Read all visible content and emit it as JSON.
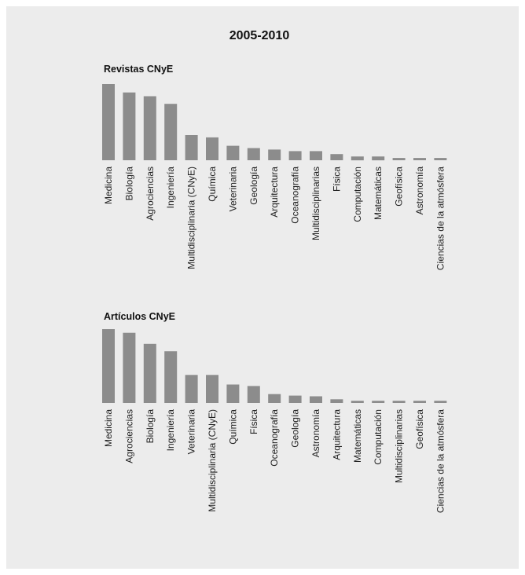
{
  "figure": {
    "title": "2005-2010"
  },
  "colors": {
    "background": "#ececec",
    "bar": "#8c8c8c",
    "text": "#222222"
  },
  "chart_data": [
    {
      "type": "bar",
      "title": "Revistas CNyE",
      "categories": [
        "Medicina",
        "Biología",
        "Agrociencias",
        "Ingeniería",
        "Multidisciplinaria (CNyE)",
        "Química",
        "Veterinaria",
        "Geología",
        "Arquitectura",
        "Oceanografía",
        "Multidisciplinarias",
        "Física",
        "Computación",
        "Matemáticas",
        "Geofísica",
        "Astronomía",
        "Ciencias de la atmósfera"
      ],
      "values": [
        100,
        89,
        84,
        74,
        33,
        30,
        19,
        16,
        14,
        12,
        12,
        8,
        5,
        5,
        3,
        3,
        3
      ],
      "xlabel": "",
      "ylabel": "",
      "ylim": [
        0,
        100
      ],
      "grid": false,
      "legend": "none"
    },
    {
      "type": "bar",
      "title": "Artículos CNyE",
      "categories": [
        "Medicina",
        "Agrociencias",
        "Biología",
        "Ingeniería",
        "Veterinaria",
        "Multidisciplinaria (CNyE)",
        "Química",
        "Física",
        "Oceanografía",
        "Geología",
        "Astronomía",
        "Arquitectura",
        "Matemáticas",
        "Computación",
        "Multidisciplinarias",
        "Geofísica",
        "Ciencias de la atmósfera"
      ],
      "values": [
        100,
        95,
        80,
        70,
        38,
        38,
        25,
        23,
        12,
        10,
        9,
        5,
        3,
        3,
        3,
        3,
        3
      ],
      "xlabel": "",
      "ylabel": "",
      "ylim": [
        0,
        100
      ],
      "grid": false,
      "legend": "none"
    }
  ]
}
